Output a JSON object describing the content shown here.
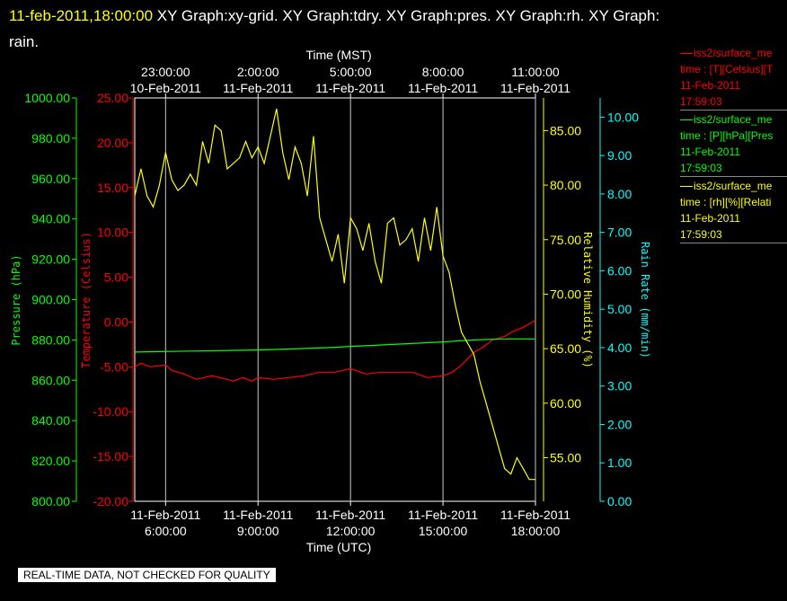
{
  "header": {
    "timestamp": "11-feb-2011,18:00:00",
    "graphs_line1": "XY Graph:xy-grid.  XY Graph:tdry.  XY Graph:pres.  XY Graph:rh.  XY Graph:",
    "graphs_line2": "rain."
  },
  "legend": [
    {
      "name": "iss2/surface_me",
      "units": "time : [T][Celsius][T",
      "date": "11-Feb-2011",
      "time": "17:59:03",
      "color": "#ff0000"
    },
    {
      "name": "iss2/surface_me",
      "units": "time : [P][hPa][Pres",
      "date": "11-Feb-2011",
      "time": "17:59:03",
      "color": "#00ff00"
    },
    {
      "name": "iss2/surface_me",
      "units": "time : [rh][%][Relati",
      "date": "11-Feb-2011",
      "time": "17:59:03",
      "color": "#ffff00"
    }
  ],
  "disclaimer": "REAL-TIME DATA, NOT CHECKED FOR QUALITY",
  "chart_data": {
    "type": "line",
    "x_range_utc": [
      "11-Feb-2011 05:00:00",
      "11-Feb-2011 18:00:00"
    ],
    "top_axis": {
      "title": "Time (MST)",
      "ticks": [
        {
          "time": "23:00:00",
          "date": "10-Feb-2011"
        },
        {
          "time": "2:00:00",
          "date": "11-Feb-2011"
        },
        {
          "time": "5:00:00",
          "date": "11-Feb-2011"
        },
        {
          "time": "8:00:00",
          "date": "11-Feb-2011"
        },
        {
          "time": "11:00:00",
          "date": "11-Feb-2011"
        }
      ]
    },
    "bottom_axis": {
      "title": "Time (UTC)",
      "ticks": [
        {
          "date": "11-Feb-2011",
          "time": "6:00:00"
        },
        {
          "date": "11-Feb-2011",
          "time": "9:00:00"
        },
        {
          "date": "11-Feb-2011",
          "time": "12:00:00"
        },
        {
          "date": "11-Feb-2011",
          "time": "15:00:00"
        },
        {
          "date": "11-Feb-2011",
          "time": "18:00:00"
        }
      ]
    },
    "grid": true,
    "axes": {
      "pressure": {
        "label": "Pressure (hPa)",
        "color": "#00ff00",
        "range": [
          800,
          1000
        ],
        "ticks": [
          "1000.00",
          "980.00",
          "960.00",
          "940.00",
          "920.00",
          "900.00",
          "880.00",
          "860.00",
          "840.00",
          "820.00",
          "800.00"
        ]
      },
      "temperature": {
        "label": "Temperature (Celsius)",
        "color": "#ff0000",
        "range": [
          -20,
          25
        ],
        "ticks": [
          "25.00",
          "20.00",
          "15.00",
          "10.00",
          "5.00",
          "0.00",
          "-5.00",
          "-10.00",
          "-15.00",
          "-20.00"
        ]
      },
      "rh": {
        "label": "Relative Humidity (%)",
        "color": "#ffff00",
        "range": [
          51,
          88
        ],
        "ticks": [
          "85.00",
          "80.00",
          "75.00",
          "70.00",
          "65.00",
          "60.00",
          "55.00"
        ]
      },
      "rain": {
        "label": "Rain Rate (mm/min)",
        "color": "#00ffff",
        "range": [
          0,
          10.5
        ],
        "ticks": [
          "10.00",
          "9.00",
          "8.00",
          "7.00",
          "6.00",
          "5.00",
          "4.00",
          "3.00",
          "2.00",
          "1.00",
          "0.00"
        ]
      }
    },
    "series": [
      {
        "axis": "temperature",
        "color": "#ff0000",
        "x_hours": [
          5.0,
          5.2,
          5.5,
          6.0,
          6.2,
          6.6,
          7.0,
          7.5,
          8.0,
          8.2,
          8.5,
          8.8,
          9.0,
          9.5,
          10.0,
          10.5,
          11.0,
          11.5,
          12.0,
          12.5,
          13.0,
          13.5,
          14.0,
          14.5,
          15.0,
          15.3,
          15.6,
          16.0,
          16.3,
          16.6,
          17.0,
          17.3,
          17.6,
          18.0
        ],
        "values": [
          -5.0,
          -4.6,
          -5.0,
          -4.8,
          -5.4,
          -5.8,
          -6.4,
          -6.0,
          -6.4,
          -6.6,
          -6.2,
          -6.6,
          -6.2,
          -6.4,
          -6.2,
          -6.0,
          -5.6,
          -5.6,
          -5.2,
          -5.8,
          -5.6,
          -5.6,
          -5.6,
          -6.2,
          -6.0,
          -5.6,
          -4.8,
          -3.4,
          -2.8,
          -2.0,
          -1.6,
          -1.0,
          -0.6,
          0.2
        ]
      },
      {
        "axis": "pressure",
        "color": "#00ff00",
        "x_hours": [
          5.0,
          7.0,
          9.0,
          11.0,
          13.0,
          15.0,
          16.0,
          17.0,
          18.0
        ],
        "values": [
          874,
          874.5,
          875,
          876,
          877.5,
          879,
          880,
          880.5,
          880.5
        ]
      },
      {
        "axis": "rh",
        "color": "#ffff00",
        "x_hours": [
          5.0,
          5.2,
          5.4,
          5.6,
          5.8,
          6.0,
          6.2,
          6.4,
          6.6,
          6.8,
          7.0,
          7.2,
          7.4,
          7.6,
          7.8,
          8.0,
          8.2,
          8.4,
          8.6,
          8.8,
          9.0,
          9.2,
          9.4,
          9.6,
          9.8,
          10.0,
          10.2,
          10.4,
          10.6,
          10.8,
          11.0,
          11.2,
          11.4,
          11.6,
          11.8,
          12.0,
          12.2,
          12.4,
          12.6,
          12.8,
          13.0,
          13.2,
          13.4,
          13.6,
          13.8,
          14.0,
          14.2,
          14.4,
          14.6,
          14.8,
          15.0,
          15.2,
          15.4,
          15.6,
          15.8,
          16.0,
          16.2,
          16.4,
          16.6,
          16.8,
          17.0,
          17.2,
          17.4,
          17.6,
          17.8,
          18.0
        ],
        "values": [
          79,
          81.5,
          79,
          78,
          80,
          83,
          80.5,
          79.5,
          80,
          81,
          80,
          84,
          82,
          85.5,
          85,
          81.5,
          82,
          82.5,
          84,
          82.5,
          83.5,
          82,
          84.5,
          87,
          83,
          80.5,
          83.5,
          82,
          79,
          84.5,
          77,
          75,
          73,
          75.5,
          71,
          77,
          76,
          74,
          76.5,
          73,
          71,
          76.5,
          77,
          74.5,
          75,
          76,
          73,
          77,
          74,
          78,
          73.5,
          72,
          69,
          66.5,
          65.5,
          64.5,
          62,
          60,
          58,
          56,
          54,
          53.5,
          55,
          54,
          53,
          53
        ]
      }
    ]
  }
}
